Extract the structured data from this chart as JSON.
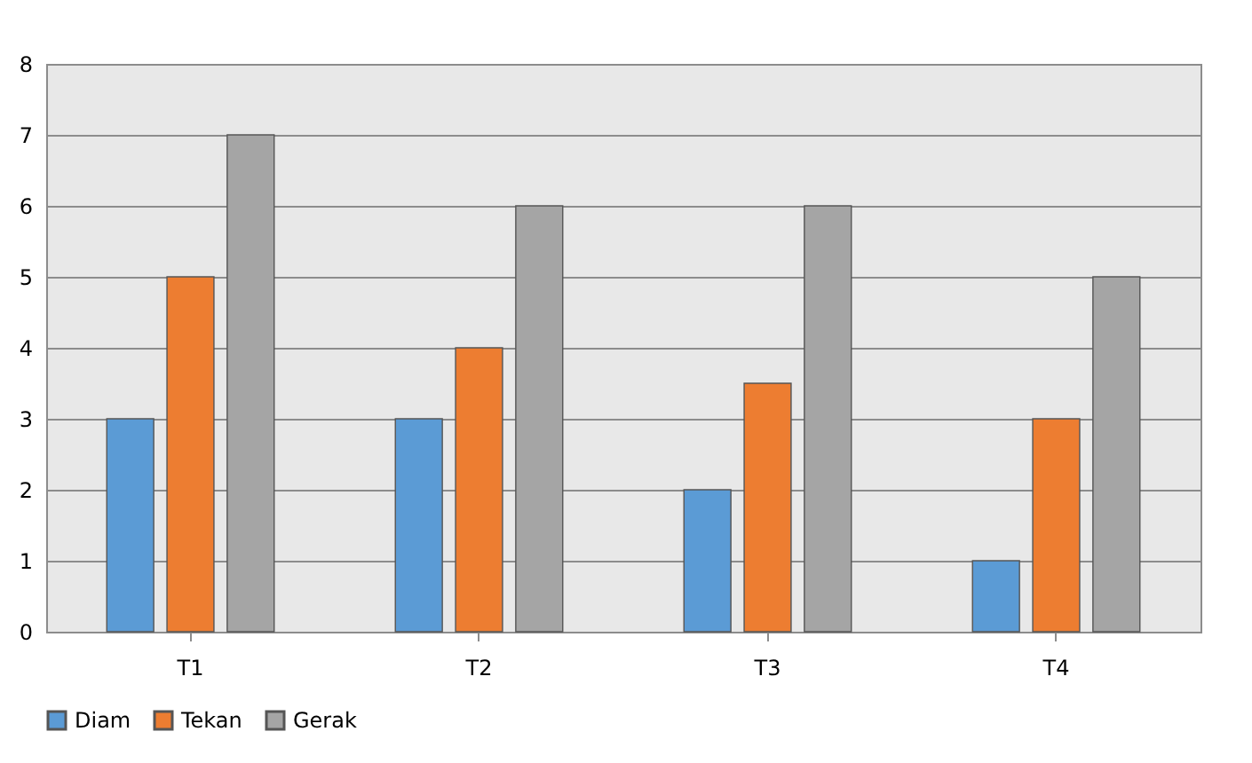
{
  "chart_data": {
    "type": "bar",
    "categories": [
      "T1",
      "T2",
      "T3",
      "T4"
    ],
    "series": [
      {
        "name": "Diam",
        "color": "#5b9bd5",
        "values": [
          3,
          3,
          2,
          1
        ]
      },
      {
        "name": "Tekan",
        "color": "#ed7d31",
        "values": [
          5,
          4,
          3.5,
          3
        ]
      },
      {
        "name": "Gerak",
        "color": "#a5a5a5",
        "values": [
          7,
          6,
          6,
          5
        ]
      }
    ],
    "ylim": [
      0,
      8
    ],
    "yticks": [
      0,
      1,
      2,
      3,
      4,
      5,
      6,
      7,
      8
    ],
    "grid": "y",
    "legend": "bottom"
  }
}
